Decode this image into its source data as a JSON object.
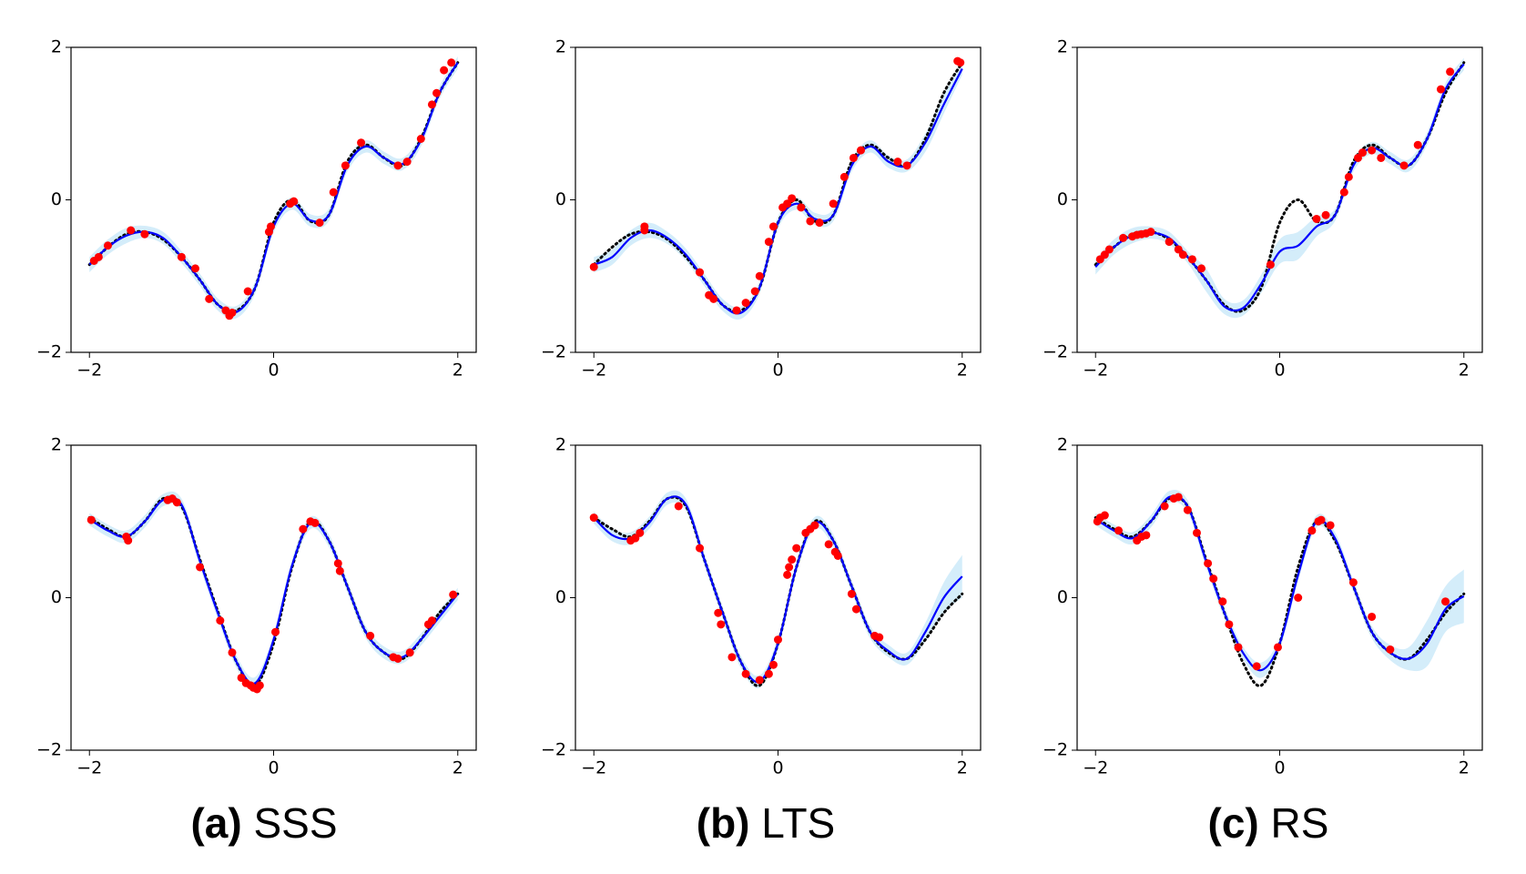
{
  "chart_data": [
    {
      "type": "line",
      "x": [
        -2.0,
        -1.8,
        -1.6,
        -1.4,
        -1.2,
        -1.0,
        -0.8,
        -0.6,
        -0.4,
        -0.2,
        0.0,
        0.2,
        0.4,
        0.6,
        0.8,
        1.0,
        1.2,
        1.4,
        1.6,
        1.8,
        2.0
      ],
      "true_values": [
        -0.85,
        -0.62,
        -0.45,
        -0.42,
        -0.52,
        -0.75,
        -1.05,
        -1.38,
        -1.45,
        -1.15,
        -0.3,
        0.0,
        -0.28,
        -0.2,
        0.5,
        0.72,
        0.55,
        0.45,
        0.8,
        1.4,
        1.8
      ],
      "mean_values": [
        -0.85,
        -0.62,
        -0.47,
        -0.42,
        -0.5,
        -0.75,
        -1.05,
        -1.38,
        -1.47,
        -1.15,
        -0.35,
        -0.05,
        -0.27,
        -0.2,
        0.45,
        0.7,
        0.55,
        0.47,
        0.78,
        1.4,
        1.8
      ],
      "band_upper": [
        -0.75,
        -0.52,
        -0.37,
        -0.34,
        -0.42,
        -0.67,
        -0.97,
        -1.3,
        -1.39,
        -1.07,
        -0.27,
        0.03,
        -0.19,
        -0.12,
        0.53,
        0.78,
        0.63,
        0.55,
        0.86,
        1.48,
        1.88
      ],
      "band_lower": [
        -0.95,
        -0.72,
        -0.57,
        -0.5,
        -0.58,
        -0.83,
        -1.13,
        -1.46,
        -1.55,
        -1.23,
        -0.43,
        -0.13,
        -0.35,
        -0.28,
        0.37,
        0.62,
        0.47,
        0.39,
        0.7,
        1.32,
        1.72
      ],
      "points": {
        "x": [
          -1.95,
          -1.9,
          -1.8,
          -1.55,
          -1.4,
          -1.0,
          -0.85,
          -0.7,
          -0.52,
          -0.48,
          -0.45,
          -0.28,
          -0.05,
          -0.03,
          0.18,
          0.22,
          0.5,
          0.65,
          0.78,
          0.95,
          1.35,
          1.45,
          1.6,
          1.72,
          1.77,
          1.85,
          1.93
        ],
        "y": [
          -0.8,
          -0.75,
          -0.6,
          -0.4,
          -0.45,
          -0.75,
          -0.9,
          -1.3,
          -1.45,
          -1.52,
          -1.48,
          -1.2,
          -0.42,
          -0.35,
          -0.05,
          -0.02,
          -0.3,
          0.1,
          0.45,
          0.75,
          0.45,
          0.5,
          0.8,
          1.25,
          1.4,
          1.7,
          1.8
        ]
      },
      "xlim": [
        -2.2,
        2.2
      ],
      "ylim": [
        -2,
        2
      ],
      "xticks": [
        {
          "value": -2,
          "label": "−2"
        },
        0,
        2
      ],
      "yticks": [
        {
          "value": -2,
          "label": "−2"
        },
        0,
        2
      ],
      "colors": {
        "true": "#000000",
        "mean": "#0000ff",
        "band": "#d4edfa",
        "points": "#ff0000"
      }
    },
    {
      "type": "line",
      "x": [
        -2.0,
        -1.8,
        -1.6,
        -1.4,
        -1.2,
        -1.0,
        -0.8,
        -0.6,
        -0.4,
        -0.2,
        0.0,
        0.2,
        0.4,
        0.6,
        0.8,
        1.0,
        1.2,
        1.4,
        1.6,
        1.8,
        2.0
      ],
      "true_values": [
        -0.85,
        -0.62,
        -0.45,
        -0.42,
        -0.52,
        -0.75,
        -1.05,
        -1.38,
        -1.45,
        -1.15,
        -0.3,
        0.0,
        -0.28,
        -0.2,
        0.5,
        0.72,
        0.55,
        0.45,
        0.8,
        1.4,
        1.8
      ],
      "mean_values": [
        -0.85,
        -0.75,
        -0.5,
        -0.4,
        -0.5,
        -0.72,
        -1.05,
        -1.38,
        -1.48,
        -1.15,
        -0.3,
        -0.05,
        -0.25,
        -0.2,
        0.45,
        0.7,
        0.5,
        0.45,
        0.75,
        1.25,
        1.72
      ],
      "band_upper": [
        -0.75,
        -0.65,
        -0.4,
        -0.3,
        -0.42,
        -0.64,
        -0.97,
        -1.3,
        -1.4,
        -1.07,
        -0.22,
        0.03,
        -0.17,
        -0.12,
        0.53,
        0.78,
        0.58,
        0.53,
        0.87,
        1.37,
        1.8
      ],
      "band_lower": [
        -0.95,
        -0.85,
        -0.6,
        -0.5,
        -0.58,
        -0.8,
        -1.13,
        -1.46,
        -1.56,
        -1.23,
        -0.38,
        -0.13,
        -0.33,
        -0.28,
        0.37,
        0.62,
        0.42,
        0.37,
        0.63,
        1.13,
        1.64
      ],
      "points": {
        "x": [
          -2.0,
          -1.45,
          -1.45,
          -0.85,
          -0.75,
          -0.7,
          -0.45,
          -0.35,
          -0.25,
          -0.2,
          -0.1,
          -0.05,
          0.05,
          0.1,
          0.15,
          0.25,
          0.35,
          0.45,
          0.6,
          0.72,
          0.82,
          0.9,
          1.3,
          1.4,
          1.95,
          1.98
        ],
        "y": [
          -0.88,
          -0.4,
          -0.35,
          -0.95,
          -1.25,
          -1.3,
          -1.45,
          -1.35,
          -1.2,
          -1.0,
          -0.55,
          -0.35,
          -0.1,
          -0.05,
          0.02,
          -0.1,
          -0.28,
          -0.3,
          -0.05,
          0.3,
          0.55,
          0.65,
          0.5,
          0.45,
          1.82,
          1.8
        ]
      },
      "xlim": [
        -2.2,
        2.2
      ],
      "ylim": [
        -2,
        2
      ],
      "xticks": [
        {
          "value": -2,
          "label": "−2"
        },
        0,
        2
      ],
      "yticks": [
        {
          "value": -2,
          "label": "−2"
        },
        0,
        2
      ],
      "colors": {
        "true": "#000000",
        "mean": "#0000ff",
        "band": "#d4edfa",
        "points": "#ff0000"
      }
    },
    {
      "type": "line",
      "x": [
        -2.0,
        -1.8,
        -1.6,
        -1.4,
        -1.2,
        -1.0,
        -0.8,
        -0.6,
        -0.4,
        -0.2,
        0.0,
        0.2,
        0.4,
        0.6,
        0.8,
        1.0,
        1.2,
        1.4,
        1.6,
        1.8,
        2.0
      ],
      "true_values": [
        -0.85,
        -0.62,
        -0.45,
        -0.42,
        -0.52,
        -0.75,
        -1.05,
        -1.38,
        -1.45,
        -1.15,
        -0.3,
        0.0,
        -0.28,
        -0.2,
        0.5,
        0.72,
        0.55,
        0.45,
        0.8,
        1.4,
        1.8
      ],
      "mean_values": [
        -0.88,
        -0.62,
        -0.47,
        -0.43,
        -0.5,
        -0.75,
        -1.05,
        -1.4,
        -1.42,
        -1.1,
        -0.68,
        -0.6,
        -0.35,
        -0.2,
        0.45,
        0.68,
        0.55,
        0.45,
        0.8,
        1.45,
        1.78
      ],
      "band_upper": [
        -0.78,
        -0.52,
        -0.37,
        -0.35,
        -0.42,
        -0.67,
        -0.9,
        -1.3,
        -1.32,
        -0.98,
        -0.52,
        -0.42,
        -0.22,
        -0.12,
        0.53,
        0.76,
        0.63,
        0.53,
        0.88,
        1.53,
        1.86
      ],
      "band_lower": [
        -0.98,
        -0.72,
        -0.57,
        -0.51,
        -0.58,
        -0.83,
        -1.2,
        -1.5,
        -1.52,
        -1.22,
        -0.84,
        -0.78,
        -0.48,
        -0.28,
        0.37,
        0.6,
        0.47,
        0.37,
        0.72,
        1.37,
        1.7
      ],
      "points": {
        "x": [
          -1.95,
          -1.9,
          -1.85,
          -1.7,
          -1.6,
          -1.55,
          -1.5,
          -1.45,
          -1.4,
          -1.2,
          -1.1,
          -1.05,
          -0.95,
          -0.85,
          -0.1,
          0.4,
          0.5,
          0.7,
          0.75,
          0.85,
          0.9,
          1.0,
          1.1,
          1.35,
          1.5,
          1.75,
          1.85
        ],
        "y": [
          -0.78,
          -0.72,
          -0.65,
          -0.5,
          -0.48,
          -0.46,
          -0.45,
          -0.44,
          -0.42,
          -0.55,
          -0.65,
          -0.72,
          -0.78,
          -0.9,
          -0.85,
          -0.25,
          -0.2,
          0.1,
          0.3,
          0.55,
          0.62,
          0.65,
          0.55,
          0.45,
          0.72,
          1.45,
          1.68
        ]
      },
      "xlim": [
        -2.2,
        2.2
      ],
      "ylim": [
        -2,
        2
      ],
      "xticks": [
        {
          "value": -2,
          "label": "−2"
        },
        0,
        2
      ],
      "yticks": [
        {
          "value": -2,
          "label": "−2"
        },
        0,
        2
      ],
      "colors": {
        "true": "#000000",
        "mean": "#0000ff",
        "band": "#d4edfa",
        "points": "#ff0000"
      }
    },
    {
      "type": "line",
      "x": [
        -2.0,
        -1.8,
        -1.6,
        -1.4,
        -1.2,
        -1.0,
        -0.8,
        -0.6,
        -0.4,
        -0.2,
        0.0,
        0.2,
        0.4,
        0.6,
        0.8,
        1.0,
        1.2,
        1.4,
        1.6,
        1.8,
        2.0
      ],
      "true_values": [
        1.05,
        0.9,
        0.8,
        1.0,
        1.3,
        1.2,
        0.5,
        -0.2,
        -0.85,
        -1.15,
        -0.6,
        0.4,
        1.0,
        0.75,
        0.15,
        -0.45,
        -0.72,
        -0.8,
        -0.55,
        -0.2,
        0.05
      ],
      "mean_values": [
        1.03,
        0.88,
        0.8,
        1.0,
        1.28,
        1.22,
        0.48,
        -0.22,
        -0.85,
        -1.12,
        -0.55,
        0.42,
        0.98,
        0.75,
        0.15,
        -0.45,
        -0.72,
        -0.78,
        -0.55,
        -0.25,
        0.05
      ],
      "band_upper": [
        1.11,
        0.96,
        0.88,
        1.08,
        1.36,
        1.3,
        0.56,
        -0.14,
        -0.77,
        -1.04,
        -0.47,
        0.5,
        1.06,
        0.83,
        0.23,
        -0.37,
        -0.64,
        -0.7,
        -0.47,
        -0.17,
        0.13
      ],
      "band_lower": [
        0.95,
        0.8,
        0.72,
        0.92,
        1.2,
        1.14,
        0.4,
        -0.3,
        -0.93,
        -1.2,
        -0.63,
        0.34,
        0.9,
        0.67,
        0.07,
        -0.53,
        -0.8,
        -0.86,
        -0.63,
        -0.33,
        -0.03
      ],
      "points": {
        "x": [
          -1.98,
          -1.6,
          -1.58,
          -1.15,
          -1.1,
          -1.05,
          -0.8,
          -0.58,
          -0.45,
          -0.35,
          -0.3,
          -0.25,
          -0.22,
          -0.18,
          -0.15,
          0.02,
          0.32,
          0.4,
          0.45,
          0.7,
          0.72,
          1.05,
          1.3,
          1.35,
          1.48,
          1.68,
          1.72,
          1.95
        ],
        "y": [
          1.02,
          0.8,
          0.75,
          1.28,
          1.3,
          1.25,
          0.4,
          -0.3,
          -0.72,
          -1.05,
          -1.12,
          -1.15,
          -1.18,
          -1.2,
          -1.15,
          -0.45,
          0.9,
          1.0,
          0.98,
          0.45,
          0.35,
          -0.5,
          -0.78,
          -0.8,
          -0.72,
          -0.35,
          -0.3,
          0.04
        ]
      },
      "xlim": [
        -2.2,
        2.2
      ],
      "ylim": [
        -2,
        2
      ],
      "xticks": [
        {
          "value": -2,
          "label": "−2"
        },
        0,
        2
      ],
      "yticks": [
        {
          "value": -2,
          "label": "−2"
        },
        0,
        2
      ],
      "colors": {
        "true": "#000000",
        "mean": "#0000ff",
        "band": "#d4edfa",
        "points": "#ff0000"
      }
    },
    {
      "type": "line",
      "x": [
        -2.0,
        -1.8,
        -1.6,
        -1.4,
        -1.2,
        -1.0,
        -0.8,
        -0.6,
        -0.4,
        -0.2,
        0.0,
        0.2,
        0.4,
        0.6,
        0.8,
        1.0,
        1.2,
        1.4,
        1.6,
        1.8,
        2.0
      ],
      "true_values": [
        1.05,
        0.9,
        0.8,
        1.0,
        1.3,
        1.2,
        0.5,
        -0.2,
        -0.85,
        -1.15,
        -0.6,
        0.4,
        1.0,
        0.75,
        0.15,
        -0.45,
        -0.72,
        -0.8,
        -0.55,
        -0.2,
        0.05
      ],
      "mean_values": [
        1.05,
        0.82,
        0.78,
        0.98,
        1.3,
        1.22,
        0.5,
        -0.2,
        -0.85,
        -1.1,
        -0.6,
        0.4,
        0.98,
        0.75,
        0.15,
        -0.45,
        -0.7,
        -0.8,
        -0.45,
        0.0,
        0.28
      ],
      "band_upper": [
        1.13,
        0.9,
        0.86,
        1.06,
        1.38,
        1.3,
        0.58,
        -0.12,
        -0.77,
        -1.02,
        -0.52,
        0.48,
        1.06,
        0.83,
        0.23,
        -0.37,
        -0.62,
        -0.72,
        -0.33,
        0.2,
        0.56
      ],
      "band_lower": [
        0.97,
        0.74,
        0.7,
        0.9,
        1.22,
        1.14,
        0.42,
        -0.28,
        -0.93,
        -1.18,
        -0.68,
        0.32,
        0.9,
        0.67,
        0.07,
        -0.53,
        -0.78,
        -0.88,
        -0.57,
        -0.2,
        0.0
      ],
      "points": {
        "x": [
          -2.0,
          -1.6,
          -1.55,
          -1.5,
          -1.08,
          -0.85,
          -0.65,
          -0.62,
          -0.5,
          -0.35,
          -0.2,
          -0.1,
          -0.05,
          0.0,
          0.1,
          0.12,
          0.15,
          0.2,
          0.3,
          0.35,
          0.4,
          0.55,
          0.62,
          0.65,
          0.8,
          0.85,
          1.05,
          1.1
        ],
        "y": [
          1.05,
          0.75,
          0.78,
          0.85,
          1.2,
          0.65,
          -0.2,
          -0.35,
          -0.78,
          -1.0,
          -1.08,
          -1.0,
          -0.88,
          -0.55,
          0.3,
          0.4,
          0.5,
          0.65,
          0.85,
          0.9,
          0.95,
          0.7,
          0.6,
          0.55,
          0.05,
          -0.15,
          -0.5,
          -0.52
        ]
      },
      "xlim": [
        -2.2,
        2.2
      ],
      "ylim": [
        -2,
        2
      ],
      "xticks": [
        {
          "value": -2,
          "label": "−2"
        },
        0,
        2
      ],
      "yticks": [
        {
          "value": -2,
          "label": "−2"
        },
        0,
        2
      ],
      "colors": {
        "true": "#000000",
        "mean": "#0000ff",
        "band": "#d4edfa",
        "points": "#ff0000"
      }
    },
    {
      "type": "line",
      "x": [
        -2.0,
        -1.8,
        -1.6,
        -1.4,
        -1.2,
        -1.0,
        -0.8,
        -0.6,
        -0.4,
        -0.2,
        0.0,
        0.2,
        0.4,
        0.6,
        0.8,
        1.0,
        1.2,
        1.4,
        1.6,
        1.8,
        2.0
      ],
      "true_values": [
        1.05,
        0.9,
        0.8,
        1.0,
        1.3,
        1.2,
        0.5,
        -0.2,
        -0.85,
        -1.15,
        -0.6,
        0.4,
        1.0,
        0.75,
        0.15,
        -0.45,
        -0.72,
        -0.8,
        -0.55,
        -0.2,
        0.05
      ],
      "mean_values": [
        1.03,
        0.88,
        0.78,
        1.0,
        1.32,
        1.2,
        0.48,
        -0.2,
        -0.72,
        -0.95,
        -0.6,
        0.3,
        1.0,
        0.78,
        0.15,
        -0.45,
        -0.72,
        -0.8,
        -0.6,
        -0.15,
        0.02
      ],
      "band_upper": [
        1.11,
        0.96,
        0.86,
        1.08,
        1.4,
        1.28,
        0.56,
        -0.12,
        -0.64,
        -0.85,
        -0.52,
        0.38,
        1.08,
        0.86,
        0.23,
        -0.37,
        -0.62,
        -0.65,
        -0.3,
        0.15,
        0.37
      ],
      "band_lower": [
        0.95,
        0.8,
        0.7,
        0.92,
        1.24,
        1.12,
        0.4,
        -0.28,
        -0.8,
        -1.05,
        -0.68,
        0.22,
        0.92,
        0.7,
        0.07,
        -0.53,
        -0.82,
        -0.95,
        -0.9,
        -0.45,
        -0.33
      ],
      "points": {
        "x": [
          -1.98,
          -1.95,
          -1.9,
          -1.75,
          -1.55,
          -1.5,
          -1.45,
          -1.25,
          -1.15,
          -1.1,
          -1.0,
          -0.9,
          -0.78,
          -0.72,
          -0.62,
          -0.55,
          -0.45,
          -0.25,
          -0.02,
          0.2,
          0.35,
          0.42,
          0.45,
          0.55,
          0.8,
          1.0,
          1.2,
          1.8
        ],
        "y": [
          1.0,
          1.05,
          1.08,
          0.88,
          0.75,
          0.8,
          0.82,
          1.2,
          1.3,
          1.32,
          1.15,
          0.85,
          0.45,
          0.25,
          -0.05,
          -0.35,
          -0.65,
          -0.9,
          -0.65,
          0.0,
          0.88,
          1.0,
          1.02,
          0.95,
          0.2,
          -0.25,
          -0.68,
          -0.05
        ]
      },
      "xlim": [
        -2.2,
        2.2
      ],
      "ylim": [
        -2,
        2
      ],
      "xticks": [
        {
          "value": -2,
          "label": "−2"
        },
        0,
        2
      ],
      "yticks": [
        {
          "value": -2,
          "label": "−2"
        },
        0,
        2
      ],
      "colors": {
        "true": "#000000",
        "mean": "#0000ff",
        "band": "#d4edfa",
        "points": "#ff0000"
      }
    }
  ],
  "captions": [
    {
      "tag": "(a)",
      "label": "SSS"
    },
    {
      "tag": "(b)",
      "label": "LTS"
    },
    {
      "tag": "(c)",
      "label": "RS"
    }
  ]
}
